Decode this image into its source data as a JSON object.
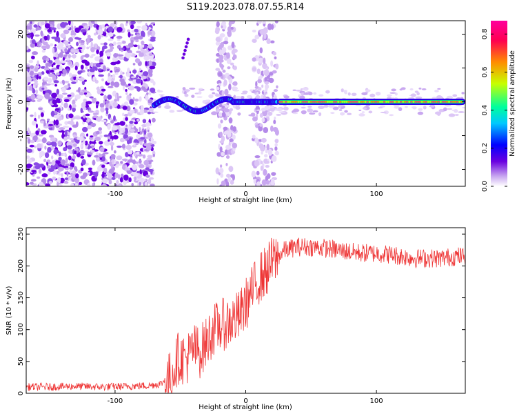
{
  "figure": {
    "title": "S119.2023.078.07.55.R14"
  },
  "chart_data": [
    {
      "type": "heatmap",
      "xlabel": "Height of straight line (km)",
      "ylabel": "Frequency (Hz)",
      "xlim": [
        -168,
        168
      ],
      "ylim": [
        -25,
        24
      ],
      "xticks": [
        -100,
        0,
        100
      ],
      "yticks": [
        -20,
        -10,
        0,
        10,
        20
      ],
      "colorbar": {
        "label": "Normalized spectral amplitude",
        "range": [
          0.0,
          0.87
        ],
        "ticks": [
          0.0,
          0.2,
          0.4,
          0.6,
          0.8
        ],
        "colors": [
          "#ffffff",
          "#c9a8f0",
          "#6a00e0",
          "#0000ff",
          "#00c8ff",
          "#00ff9c",
          "#c8ff00",
          "#ff8c00",
          "#ff0050",
          "#ff009c"
        ]
      },
      "features": {
        "scatter_noise_x_range": [
          -168,
          -70
        ],
        "band_segments_x_ranges": [
          [
            -22,
            -8
          ],
          [
            6,
            24
          ]
        ],
        "signal_blobs_x_range": [
          -70,
          24
        ],
        "signal_line": {
          "x_range": [
            24,
            168
          ],
          "frequency": 0
        }
      }
    },
    {
      "type": "line",
      "xlabel": "Height of straight line (km)",
      "ylabel": "SNR (10 * v/v)",
      "xlim": [
        -168,
        168
      ],
      "ylim": [
        0,
        260
      ],
      "xticks": [
        -100,
        0,
        100
      ],
      "yticks": [
        0,
        50,
        100,
        150,
        200,
        250
      ],
      "color": "#ee3333",
      "series": [
        {
          "x": [
            -168,
            -150,
            -130,
            -110,
            -90,
            -75,
            -65,
            -58,
            -52,
            -45,
            -40,
            -35,
            -30,
            -25,
            -20,
            -15,
            -10,
            -5,
            0,
            5,
            10,
            15,
            20,
            25,
            30,
            40,
            50,
            60,
            70,
            80,
            90,
            100,
            110,
            120,
            130,
            140,
            150,
            160,
            168
          ],
          "values": [
            10,
            10,
            11,
            10,
            11,
            12,
            15,
            25,
            55,
            55,
            70,
            65,
            80,
            100,
            105,
            110,
            115,
            120,
            140,
            160,
            180,
            190,
            205,
            215,
            225,
            230,
            230,
            228,
            225,
            222,
            220,
            220,
            218,
            215,
            212,
            212,
            212,
            215,
            215
          ]
        }
      ]
    }
  ]
}
